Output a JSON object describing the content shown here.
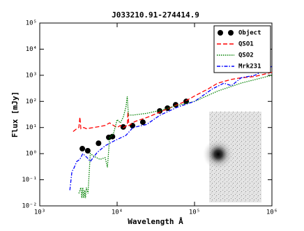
{
  "chart_data": {
    "type": "line",
    "title": "J033210.91-274414.9",
    "xlabel": "Wavelength Å",
    "ylabel": "Flux [mJy]",
    "xscale": "log",
    "yscale": "log",
    "xlim": [
      1000,
      1000000
    ],
    "ylim": [
      0.01,
      100000
    ],
    "xticks": [
      {
        "value": 1000,
        "label": "10³"
      },
      {
        "value": 10000,
        "label": "10⁴"
      },
      {
        "value": 100000,
        "label": "10⁵"
      },
      {
        "value": 1000000,
        "label": "10⁶"
      }
    ],
    "yticks": [
      {
        "value": 0.01,
        "label": "10⁻²"
      },
      {
        "value": 0.1,
        "label": "10⁻¹"
      },
      {
        "value": 1,
        "label": "10⁰"
      },
      {
        "value": 10,
        "label": "10¹"
      },
      {
        "value": 100,
        "label": "10²"
      },
      {
        "value": 1000,
        "label": "10³"
      },
      {
        "value": 10000,
        "label": "10⁴"
      },
      {
        "value": 100000,
        "label": "10⁵"
      }
    ],
    "legend": "upper right",
    "series": [
      {
        "name": "Object",
        "color": "#000000",
        "marker": "circle",
        "linestyle": "none",
        "x": [
          3550,
          4170,
          5750,
          7800,
          8700,
          12000,
          15800,
          21500,
          35500,
          44700,
          57000,
          78000
        ],
        "values": [
          1.55,
          1.29,
          2.5,
          4.2,
          4.5,
          10.5,
          11.8,
          16,
          43,
          55,
          74,
          100
        ]
      },
      {
        "name": "QSO1",
        "color": "#ff0000",
        "marker": "none",
        "linestyle": "dashed",
        "x": [
          2700,
          3000,
          3200,
          3300,
          3400,
          3700,
          4000,
          5000,
          6000,
          7000,
          8000,
          9000,
          10000,
          11000,
          12000,
          13500,
          13800,
          14200,
          17000,
          25000,
          40000,
          70000,
          100000,
          150000,
          200000,
          300000,
          400000,
          600000,
          1000000
        ],
        "values": [
          7,
          9,
          10,
          25,
          9,
          10,
          9,
          10,
          11,
          12,
          15,
          12,
          10,
          12,
          10,
          12,
          40,
          12,
          17,
          25,
          45,
          90,
          160,
          300,
          500,
          700,
          800,
          900,
          1300
        ]
      },
      {
        "name": "QSO2",
        "color": "#008000",
        "marker": "none",
        "linestyle": "dotted",
        "x": [
          3200,
          3400,
          3500,
          3600,
          3700,
          3800,
          3900,
          4000,
          4200,
          4400,
          4500,
          5000,
          6000,
          7000,
          7500,
          8000,
          9000,
          10000,
          11000,
          12000,
          13000,
          13500,
          14000,
          16000,
          24000,
          36000,
          60000,
          100000,
          200000,
          400000,
          1000000
        ],
        "values": [
          0.03,
          0.05,
          0.02,
          0.05,
          0.02,
          0.04,
          0.02,
          0.05,
          0.03,
          0.3,
          1,
          0.8,
          0.6,
          0.7,
          0.3,
          4,
          6,
          20,
          15,
          25,
          60,
          155,
          30,
          30,
          35,
          45,
          70,
          100,
          250,
          500,
          1000
        ]
      },
      {
        "name": "Mrk231",
        "color": "#0000ff",
        "marker": "none",
        "linestyle": "dashdot",
        "x": [
          2450,
          2600,
          2800,
          3000,
          3300,
          3600,
          4100,
          4500,
          5500,
          7000,
          9000,
          10000,
          13000,
          16000,
          24000,
          36000,
          60000,
          100000,
          170000,
          240000,
          300000,
          400000,
          600000,
          1000000
        ],
        "values": [
          0.04,
          0.2,
          0.3,
          0.5,
          0.6,
          1,
          0.7,
          0.5,
          1.1,
          2,
          3,
          3.5,
          5,
          10,
          13,
          30,
          60,
          100,
          300,
          500,
          400,
          800,
          1000,
          2200
        ]
      }
    ]
  }
}
